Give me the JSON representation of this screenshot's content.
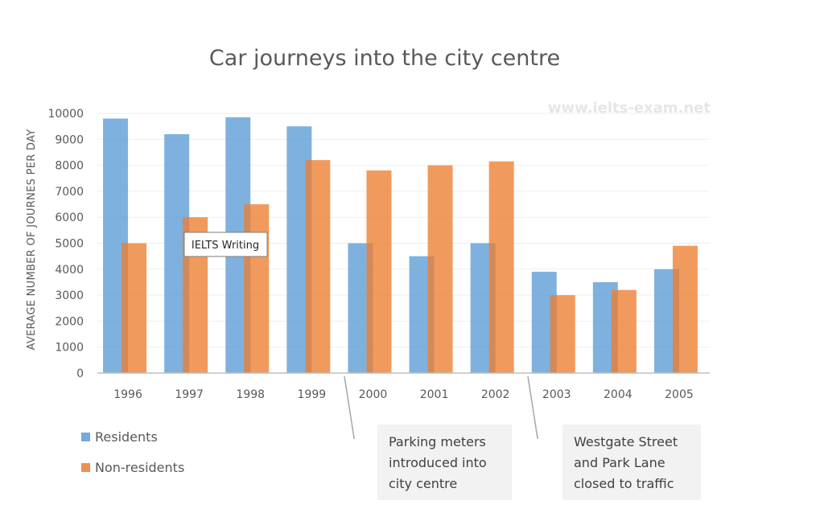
{
  "chart_data": {
    "type": "bar",
    "title": "Car journeys into the city centre",
    "ylabel": "AVERAGE NUMBER OF JOURNES PER DAY",
    "xlabel": "",
    "ylim": [
      0,
      10000
    ],
    "yticks": [
      0,
      1000,
      2000,
      3000,
      4000,
      5000,
      6000,
      7000,
      8000,
      9000,
      10000
    ],
    "categories": [
      "1996",
      "1997",
      "1998",
      "1999",
      "2000",
      "2001",
      "2002",
      "2003",
      "2004",
      "2005"
    ],
    "series": [
      {
        "name": "Residents",
        "color": "#5b9bd5",
        "values": [
          9800,
          9200,
          9850,
          9500,
          5000,
          4500,
          5000,
          3900,
          3500,
          4000
        ]
      },
      {
        "name": "Non-residents",
        "color": "#ed7d31",
        "values": [
          5000,
          6000,
          6500,
          8200,
          7800,
          8000,
          8150,
          3000,
          3200,
          4900
        ]
      }
    ],
    "grid": true,
    "legend_position": "bottom-left",
    "annotations": [
      {
        "lines": [
          "Parking meters",
          "introduced into",
          "city centre"
        ],
        "between": [
          "1999",
          "2000"
        ]
      },
      {
        "lines": [
          "Westgate Street",
          "and Park Lane",
          "closed to traffic"
        ],
        "between": [
          "2002",
          "2003"
        ]
      }
    ]
  },
  "watermark": "www.ielts-exam.net",
  "tooltip": "IELTS Writing"
}
